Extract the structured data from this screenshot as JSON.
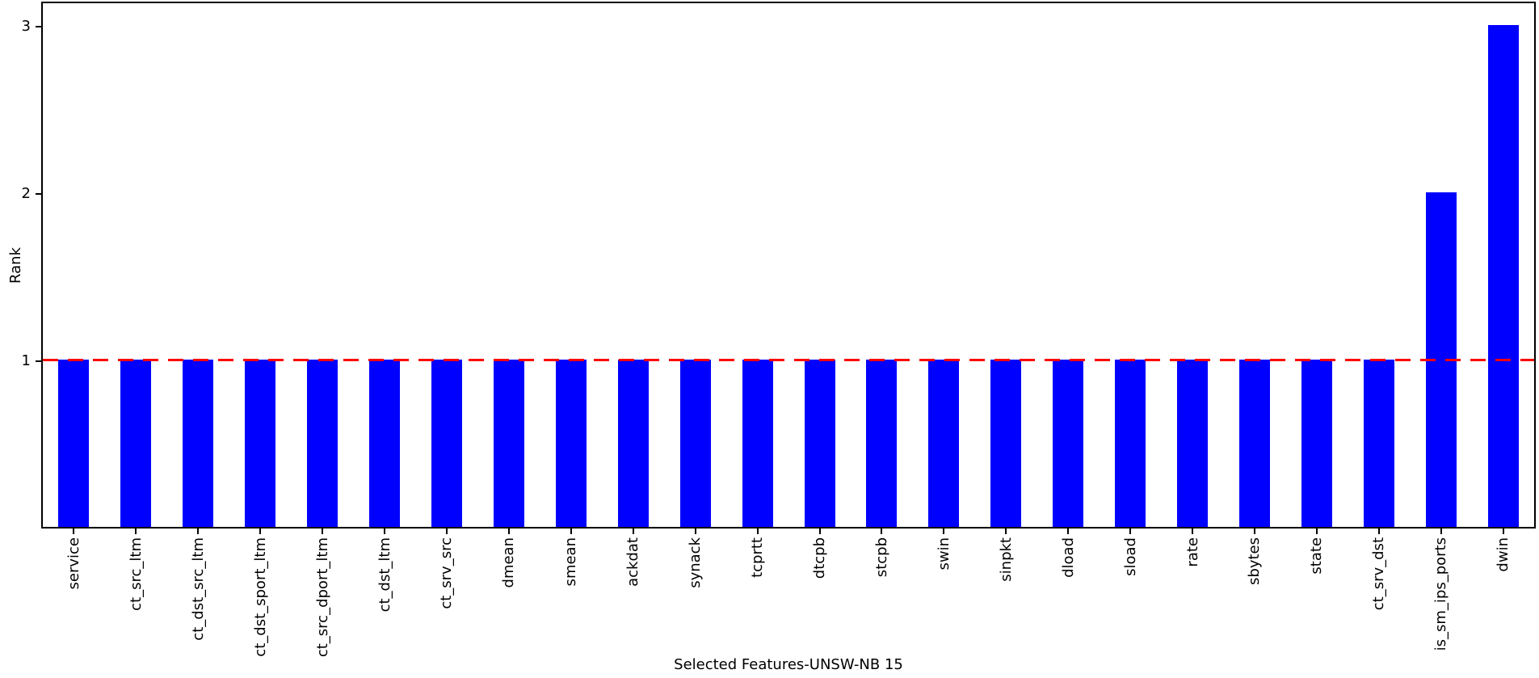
{
  "chart_data": {
    "type": "bar",
    "title": "",
    "categories": [
      "service",
      "ct_src_ltm",
      "ct_dst_src_ltm",
      "ct_dst_sport_ltm",
      "ct_src_dport_ltm",
      "ct_dst_ltm",
      "ct_srv_src",
      "dmean",
      "smean",
      "ackdat",
      "synack",
      "tcprtt",
      "dtcpb",
      "stcpb",
      "swin",
      "sinpkt",
      "dload",
      "sload",
      "rate",
      "sbytes",
      "state",
      "ct_srv_dst",
      "is_sm_ips_ports",
      "dwin"
    ],
    "values": [
      1,
      1,
      1,
      1,
      1,
      1,
      1,
      1,
      1,
      1,
      1,
      1,
      1,
      1,
      1,
      1,
      1,
      1,
      1,
      1,
      1,
      1,
      2,
      3
    ],
    "xlabel": "Selected Features-UNSW-NB 15",
    "ylabel": "Rank",
    "yticks": [
      1,
      2,
      3
    ],
    "ylim": [
      0,
      3.15
    ],
    "grid": false,
    "legend": null,
    "bar_color": "#0000ff",
    "spine_color": "#000000",
    "threshold_line": {
      "y": 1,
      "color": "#ff0000",
      "style": "dashed"
    }
  }
}
